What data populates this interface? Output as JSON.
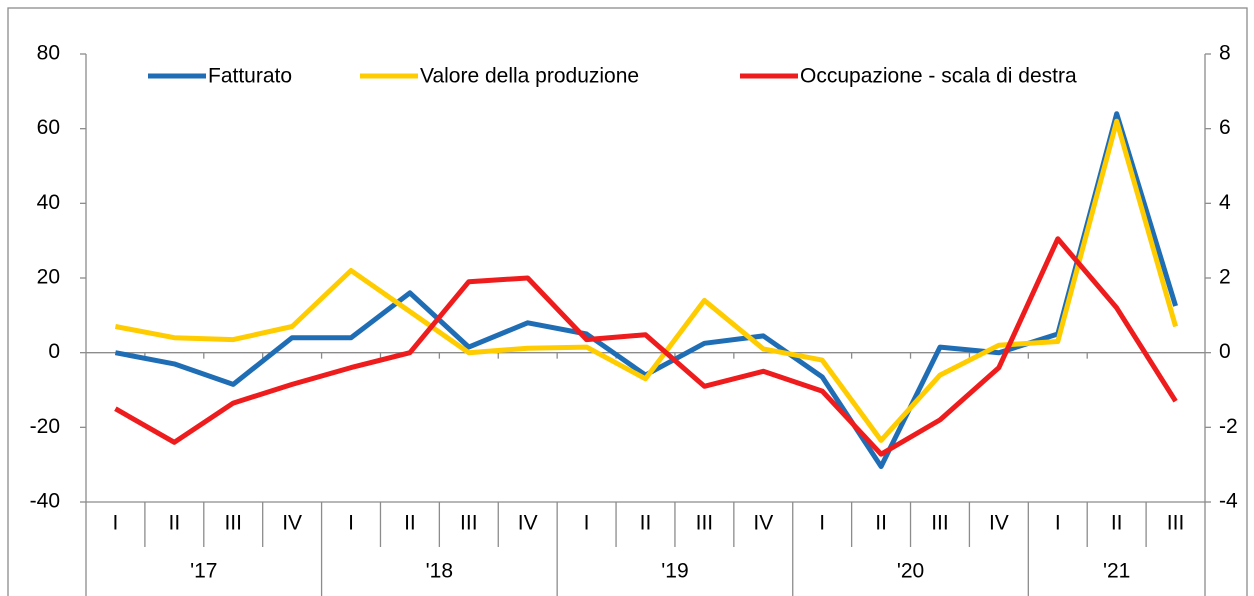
{
  "chart_data": {
    "type": "line",
    "categories": [
      "I",
      "II",
      "III",
      "IV",
      "I",
      "II",
      "III",
      "IV",
      "I",
      "II",
      "III",
      "IV",
      "I",
      "II",
      "III",
      "IV",
      "I",
      "II",
      "III"
    ],
    "groups": [
      "'17",
      "'18",
      "'19",
      "'20",
      "'21"
    ],
    "group_sizes": [
      4,
      4,
      4,
      4,
      3
    ],
    "series": [
      {
        "name": "Fatturato",
        "color": "#1f6eb5",
        "axis": "y",
        "values": [
          0,
          -3,
          -8.5,
          4,
          4,
          16,
          1.5,
          8,
          5,
          -6,
          2.5,
          4.5,
          -6.5,
          -30.5,
          1.5,
          0,
          5,
          64,
          12.5
        ]
      },
      {
        "name": "Valore della produzione",
        "color": "#ffcc00",
        "axis": "y",
        "values": [
          7,
          4,
          3.5,
          7,
          22,
          11,
          0,
          1.2,
          1.5,
          -7,
          14,
          1,
          -2,
          -23.5,
          -6,
          2,
          3,
          62,
          7
        ]
      },
      {
        "name": "Occupazione - scala di destra",
        "color": "#ee1c1c",
        "axis": "y2",
        "values": [
          -1.5,
          -2.4,
          -1.35,
          -0.85,
          -0.4,
          0,
          1.9,
          2,
          0.35,
          0.48,
          -0.9,
          -0.5,
          -1.03,
          -2.72,
          -1.8,
          -0.4,
          3.05,
          1.2,
          -1.3
        ]
      }
    ],
    "ylim": [
      -40,
      80
    ],
    "yticks": [
      -40,
      -20,
      0,
      20,
      40,
      60,
      80
    ],
    "y2lim": [
      -4,
      8
    ],
    "y2ticks": [
      -4,
      -2,
      0,
      2,
      4,
      6,
      8
    ],
    "legend": "top",
    "grid": false
  }
}
